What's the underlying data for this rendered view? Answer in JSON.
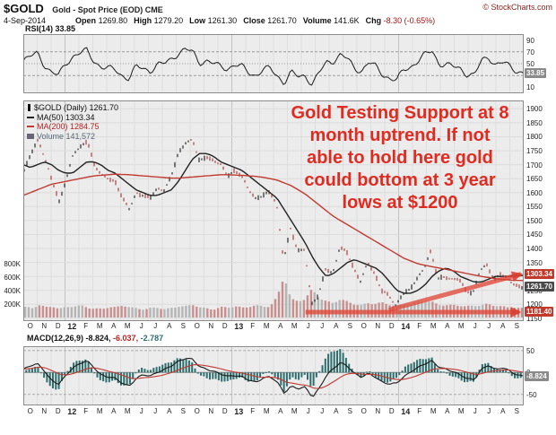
{
  "header": {
    "symbol": "$GOLD",
    "description": "Gold - Spot Price (EOD) CME",
    "credit": "© StockCharts.com",
    "date": "4-Sep-2014",
    "quote": [
      {
        "label": "Open",
        "value": "1269.80"
      },
      {
        "label": "High",
        "value": "1279.20"
      },
      {
        "label": "Low",
        "value": "1261.30"
      },
      {
        "label": "Close",
        "value": "1261.70"
      },
      {
        "label": "Volume",
        "value": "141.6K"
      },
      {
        "label": "Chg",
        "value": "-8.30 (-0.65%)",
        "color": "#aa1111"
      }
    ]
  },
  "rsi_panel": {
    "label": "RSI(14) 33.85",
    "ticks": [
      90,
      70,
      50,
      30,
      10
    ],
    "value_box": {
      "text": "33.85",
      "value": 33.85
    }
  },
  "main_panel": {
    "legend": {
      "title": "$GOLD (Daily) 1261.70",
      "ma50": "MA(50) 1303.34",
      "ma200": "MA(200) 1284.75",
      "volume": "Volume 141,572"
    },
    "price_ticks": [
      1900,
      1850,
      1800,
      1750,
      1700,
      1650,
      1600,
      1550,
      1500,
      1450,
      1400,
      1350,
      1300,
      1250,
      1200,
      1150
    ],
    "volume_ticks": [
      {
        "text": "800K",
        "value": 800
      },
      {
        "text": "600K",
        "value": 600
      },
      {
        "text": "400K",
        "value": 400
      },
      {
        "text": "200K",
        "value": 200
      }
    ],
    "price_labels": [
      {
        "text": "1303.34",
        "price": 1307,
        "bg": "#c0392b"
      },
      {
        "text": "1261.70",
        "price": 1261.7,
        "bg": "#4a4a4a"
      },
      {
        "text": "1181.40",
        "price": 1172,
        "bg": "#c0392b"
      }
    ],
    "annotation": {
      "color": "#e02b20",
      "lines": [
        "Gold Testing Support at 8",
        "month uptrend.  If not",
        "able to hold here gold",
        "could bottom at 3 year",
        "lows at $1200"
      ]
    }
  },
  "macd_panel": {
    "parts": [
      {
        "text": "MACD(12,26,9) -8.824, ",
        "color": "#111111"
      },
      {
        "text": "-6.037, ",
        "color": "#bb2222"
      },
      {
        "text": "-2.787",
        "color": "#2d6e6e"
      }
    ],
    "ticks": [
      50,
      0,
      -50
    ],
    "value_box": {
      "text": "-8.824",
      "value": -8.8
    }
  },
  "chart_data": {
    "type": "line",
    "title": "$GOLD Gold - Spot Price (EOD) CME",
    "x_axis": "Oct 2011 to Sep 2014, two samples per month",
    "months": [
      "O",
      "N",
      "D",
      "12",
      "F",
      "M",
      "A",
      "M",
      "J",
      "J",
      "A",
      "S",
      "O",
      "N",
      "D",
      "13",
      "F",
      "M",
      "A",
      "M",
      "J",
      "J",
      "A",
      "S",
      "O",
      "N",
      "D",
      "14",
      "F",
      "M",
      "A",
      "M",
      "J",
      "J",
      "A",
      "S"
    ],
    "ylim_price": [
      1140,
      1930
    ],
    "ylim_rsi": [
      0,
      100
    ],
    "ylim_macd": [
      -75,
      60
    ],
    "price": [
      1680,
      1740,
      1790,
      1720,
      1640,
      1565,
      1650,
      1740,
      1760,
      1788,
      1700,
      1662,
      1650,
      1640,
      1580,
      1540,
      1600,
      1590,
      1580,
      1615,
      1610,
      1660,
      1740,
      1780,
      1790,
      1710,
      1730,
      1715,
      1700,
      1660,
      1680,
      1660,
      1610,
      1580,
      1590,
      1600,
      1560,
      1360,
      1470,
      1390,
      1400,
      1200,
      1230,
      1330,
      1310,
      1400,
      1390,
      1330,
      1280,
      1350,
      1310,
      1250,
      1230,
      1195,
      1240,
      1250,
      1290,
      1330,
      1390,
      1290,
      1300,
      1290,
      1290,
      1250,
      1240,
      1320,
      1340,
      1290,
      1310,
      1288,
      1270,
      1262
    ],
    "ma50": [
      1700,
      1690,
      1700,
      1710,
      1700,
      1680,
      1670,
      1670,
      1690,
      1710,
      1710,
      1700,
      1680,
      1670,
      1650,
      1630,
      1610,
      1600,
      1590,
      1590,
      1600,
      1610,
      1640,
      1680,
      1720,
      1740,
      1740,
      1730,
      1710,
      1700,
      1690,
      1680,
      1660,
      1640,
      1620,
      1600,
      1580,
      1540,
      1500,
      1460,
      1420,
      1370,
      1330,
      1300,
      1310,
      1330,
      1350,
      1360,
      1350,
      1340,
      1330,
      1310,
      1280,
      1250,
      1240,
      1240,
      1250,
      1270,
      1300,
      1320,
      1330,
      1320,
      1300,
      1290,
      1280,
      1280,
      1290,
      1300,
      1300,
      1300,
      1303,
      1303
    ],
    "ma200": [
      1590,
      1600,
      1610,
      1620,
      1630,
      1635,
      1640,
      1645,
      1650,
      1655,
      1660,
      1662,
      1664,
      1666,
      1665,
      1664,
      1662,
      1660,
      1658,
      1656,
      1654,
      1652,
      1652,
      1654,
      1656,
      1658,
      1660,
      1662,
      1664,
      1664,
      1663,
      1662,
      1660,
      1658,
      1655,
      1650,
      1645,
      1635,
      1625,
      1610,
      1595,
      1575,
      1555,
      1535,
      1515,
      1500,
      1485,
      1470,
      1455,
      1440,
      1425,
      1410,
      1395,
      1380,
      1365,
      1355,
      1345,
      1340,
      1335,
      1330,
      1325,
      1320,
      1315,
      1310,
      1305,
      1300,
      1296,
      1292,
      1289,
      1287,
      1286,
      1285
    ],
    "rsi": [
      55,
      62,
      68,
      48,
      35,
      30,
      50,
      62,
      68,
      72,
      55,
      45,
      42,
      40,
      30,
      25,
      45,
      42,
      38,
      48,
      50,
      58,
      68,
      74,
      70,
      52,
      55,
      50,
      45,
      42,
      48,
      45,
      35,
      30,
      40,
      42,
      30,
      18,
      35,
      28,
      30,
      15,
      35,
      52,
      55,
      65,
      58,
      42,
      38,
      52,
      45,
      32,
      25,
      22,
      40,
      45,
      55,
      65,
      72,
      50,
      48,
      45,
      42,
      32,
      30,
      55,
      62,
      48,
      52,
      46,
      38,
      34
    ],
    "macd": [
      8,
      14,
      20,
      5,
      -18,
      -28,
      -8,
      12,
      20,
      26,
      12,
      -4,
      -10,
      -14,
      -24,
      -30,
      -14,
      -6,
      -8,
      2,
      6,
      14,
      26,
      34,
      30,
      12,
      8,
      4,
      -4,
      -10,
      -6,
      -8,
      -18,
      -24,
      -12,
      -8,
      -22,
      -48,
      -30,
      -36,
      -34,
      -58,
      -34,
      -6,
      8,
      22,
      16,
      -2,
      -12,
      -2,
      -10,
      -22,
      -28,
      -24,
      -8,
      2,
      10,
      20,
      28,
      12,
      6,
      2,
      -4,
      -14,
      -18,
      8,
      18,
      6,
      10,
      4,
      -4,
      -8.8
    ],
    "volume_k": [
      160,
      130,
      180,
      150,
      170,
      140,
      150,
      160,
      170,
      150,
      140,
      130,
      150,
      140,
      180,
      160,
      140,
      120,
      130,
      140,
      130,
      150,
      170,
      160,
      180,
      150,
      140,
      130,
      150,
      140,
      160,
      150,
      170,
      180,
      160,
      150,
      300,
      620,
      280,
      240,
      260,
      420,
      300,
      250,
      220,
      260,
      230,
      200,
      190,
      220,
      200,
      210,
      190,
      180,
      200,
      190,
      220,
      230,
      240,
      200,
      190,
      180,
      170,
      160,
      180,
      190,
      200,
      170,
      160,
      150,
      160,
      142
    ],
    "annotations": {
      "support_line": {
        "from": [
          20.3,
          1172
        ],
        "to": [
          35.7,
          1172
        ]
      },
      "trend_line": {
        "from": [
          26.3,
          1180
        ],
        "to": [
          35.8,
          1308
        ]
      }
    }
  }
}
